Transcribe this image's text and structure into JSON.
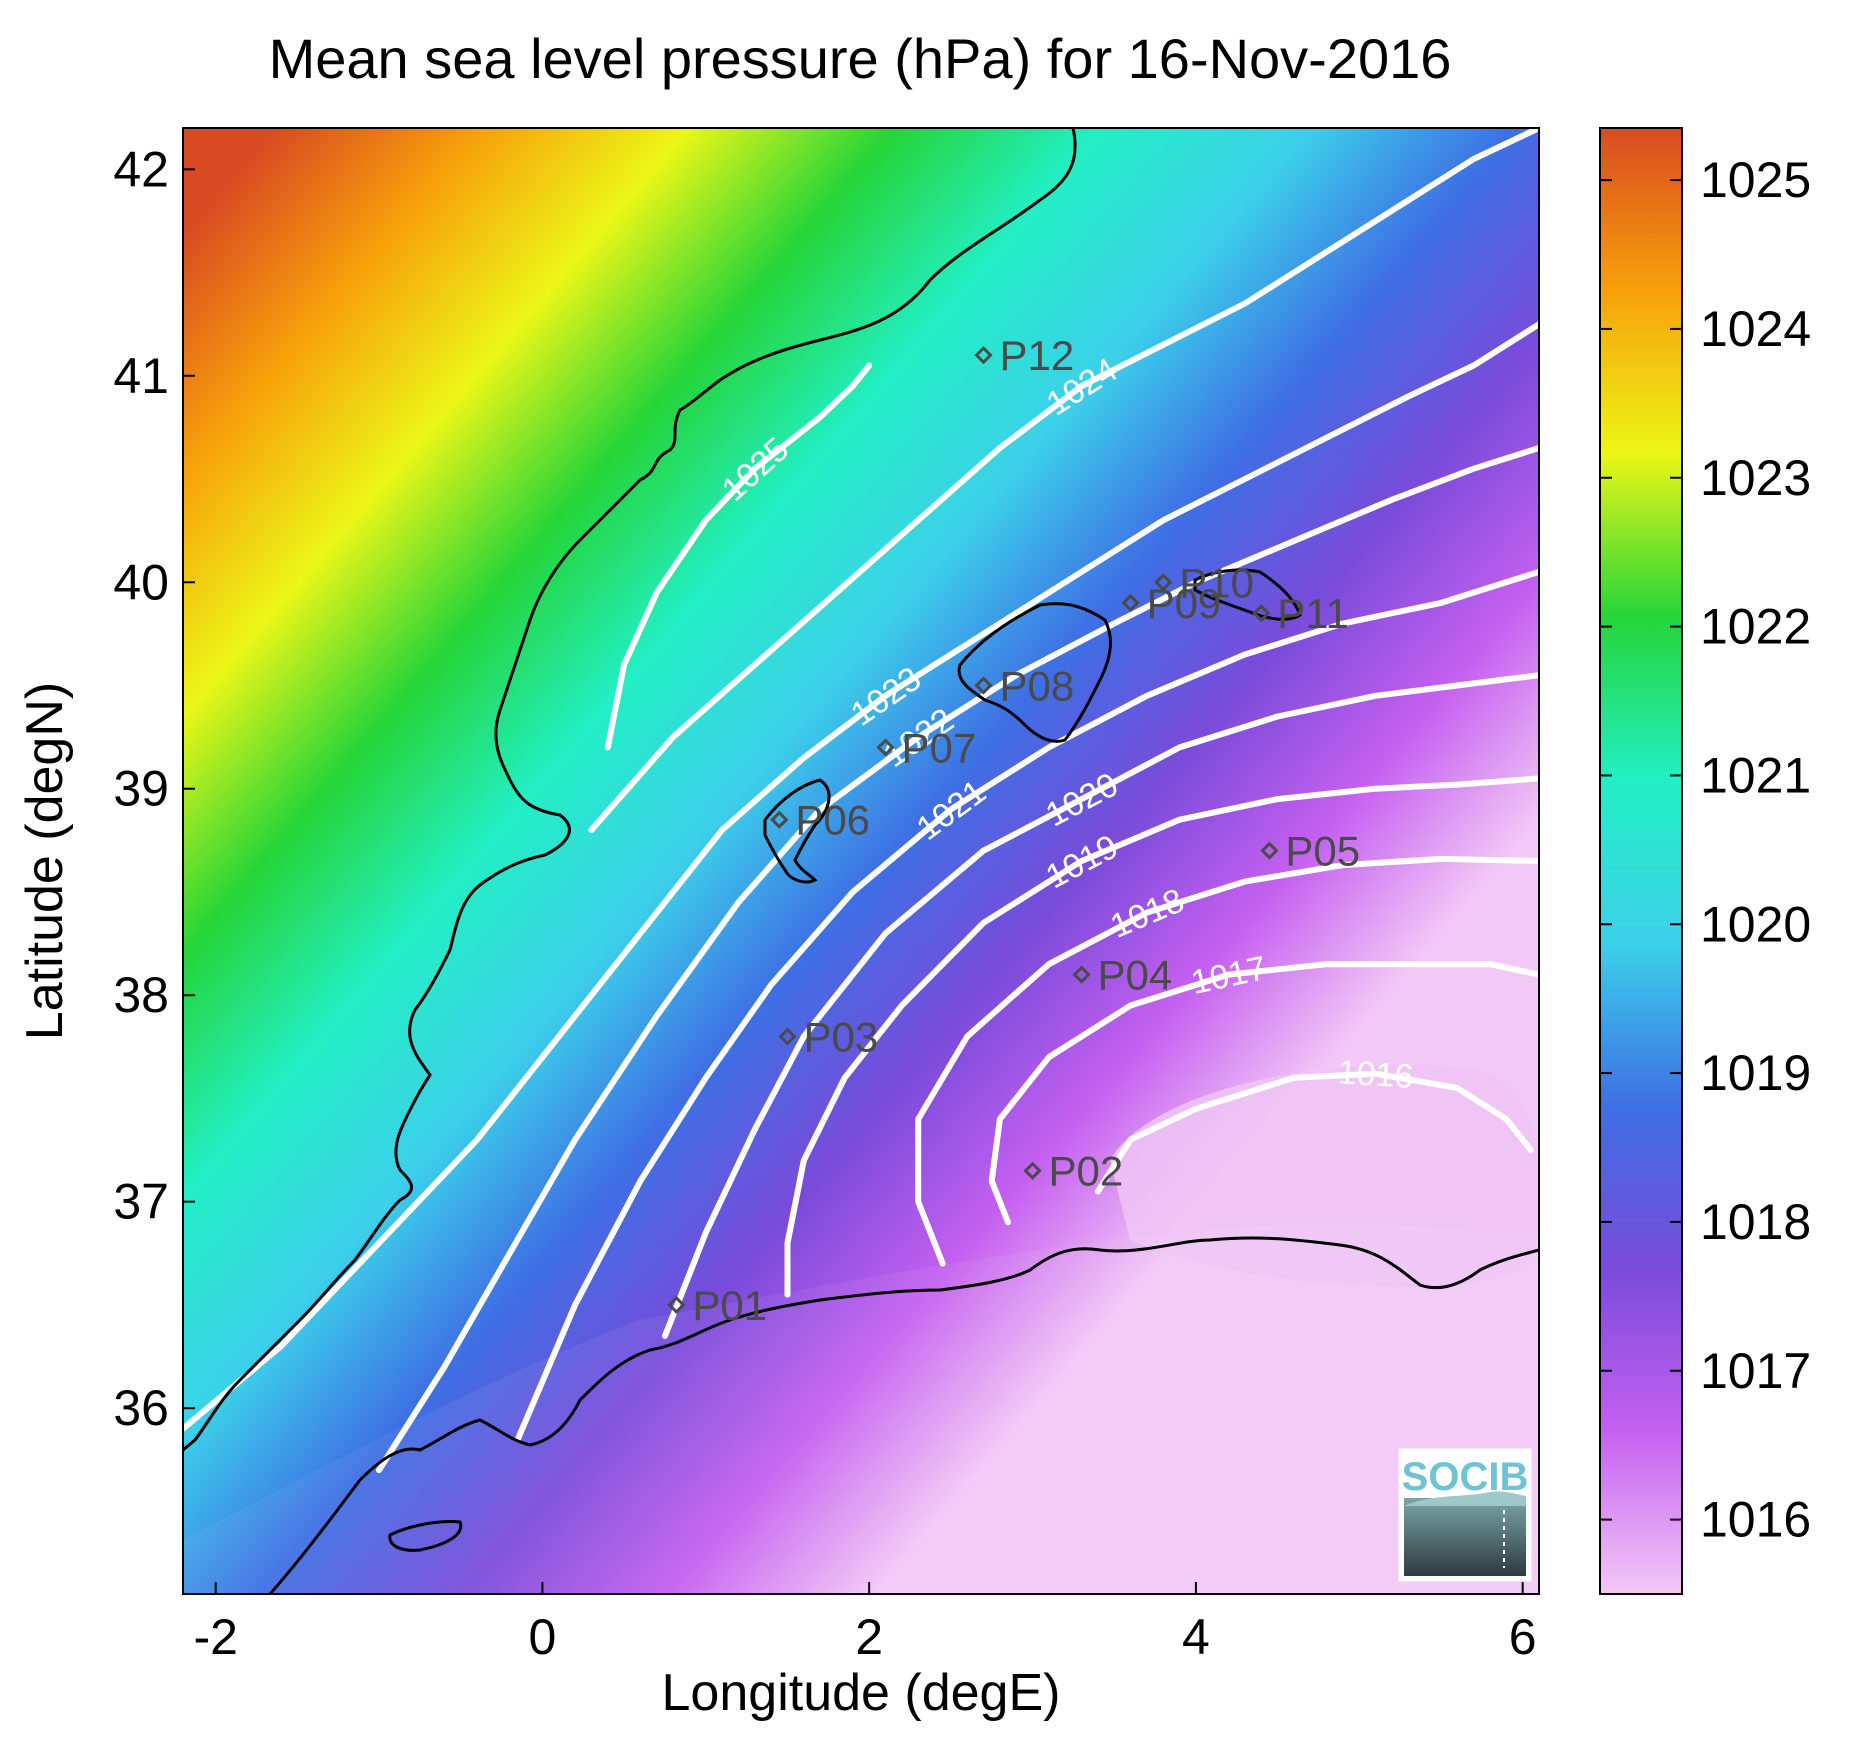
{
  "title": "Mean sea level pressure (hPa) for 16-Nov-2016",
  "x_axis": {
    "label": "Longitude (degE)",
    "ticks": [
      -2,
      0,
      2,
      4,
      6
    ],
    "range": [
      -2.2,
      6.1
    ]
  },
  "y_axis": {
    "label": "Latitude (degN)",
    "ticks": [
      36,
      37,
      38,
      39,
      40,
      41,
      42
    ],
    "range": [
      35.1,
      42.2
    ]
  },
  "colorbar": {
    "ticks": [
      1016,
      1017,
      1018,
      1019,
      1020,
      1021,
      1022,
      1023,
      1024,
      1025
    ],
    "range": [
      1015.5,
      1025.35
    ],
    "colors": [
      "#f2c8f6",
      "#c560f0",
      "#7a4bda",
      "#3e6fe4",
      "#3cd0ea",
      "#22efc4",
      "#25d538",
      "#ecf617",
      "#f7a10a",
      "#d94a22"
    ]
  },
  "contour_color": "#ffffff",
  "coastline_color": "#000000",
  "contours": [
    {
      "value": 1025,
      "label": "1025",
      "points": [
        [
          0.4,
          39.2
        ],
        [
          0.5,
          39.6
        ],
        [
          0.7,
          39.95
        ],
        [
          1.0,
          40.3
        ],
        [
          1.3,
          40.55
        ],
        [
          1.7,
          40.8
        ],
        [
          1.9,
          40.95
        ],
        [
          2.0,
          41.05
        ]
      ]
    },
    {
      "value": 1024,
      "label": "1024",
      "points": [
        [
          0.3,
          38.8
        ],
        [
          0.8,
          39.25
        ],
        [
          1.3,
          39.6
        ],
        [
          1.8,
          39.95
        ],
        [
          2.3,
          40.3
        ],
        [
          2.8,
          40.65
        ],
        [
          3.3,
          40.95
        ],
        [
          3.8,
          41.15
        ],
        [
          4.3,
          41.35
        ],
        [
          4.8,
          41.6
        ],
        [
          5.3,
          41.85
        ],
        [
          5.7,
          42.05
        ],
        [
          6.1,
          42.2
        ]
      ]
    },
    {
      "value": 1023,
      "label": "1023",
      "points": [
        [
          -2.2,
          35.9
        ],
        [
          -1.6,
          36.3
        ],
        [
          -1.0,
          36.8
        ],
        [
          -0.4,
          37.3
        ],
        [
          0.1,
          37.8
        ],
        [
          0.6,
          38.3
        ],
        [
          1.1,
          38.8
        ],
        [
          1.6,
          39.15
        ],
        [
          2.1,
          39.45
        ],
        [
          2.7,
          39.75
        ],
        [
          3.3,
          40.05
        ],
        [
          3.8,
          40.3
        ],
        [
          4.3,
          40.5
        ],
        [
          4.8,
          40.7
        ],
        [
          5.3,
          40.9
        ],
        [
          5.7,
          41.05
        ],
        [
          6.1,
          41.25
        ]
      ]
    },
    {
      "value": 1022,
      "label": "1022",
      "points": [
        [
          -1.0,
          35.7
        ],
        [
          -0.6,
          36.2
        ],
        [
          -0.2,
          36.75
        ],
        [
          0.2,
          37.3
        ],
        [
          0.7,
          37.9
        ],
        [
          1.2,
          38.45
        ],
        [
          1.7,
          38.9
        ],
        [
          2.3,
          39.25
        ],
        [
          2.9,
          39.55
        ],
        [
          3.5,
          39.8
        ],
        [
          4.0,
          40.0
        ],
        [
          4.6,
          40.2
        ],
        [
          5.2,
          40.4
        ],
        [
          5.7,
          40.55
        ],
        [
          6.1,
          40.65
        ]
      ]
    },
    {
      "value": 1021,
      "label": "1021",
      "points": [
        [
          -0.15,
          35.85
        ],
        [
          0.2,
          36.5
        ],
        [
          0.6,
          37.1
        ],
        [
          1.0,
          37.6
        ],
        [
          1.4,
          38.05
        ],
        [
          1.9,
          38.5
        ],
        [
          2.5,
          38.9
        ],
        [
          3.1,
          39.2
        ],
        [
          3.7,
          39.45
        ],
        [
          4.3,
          39.65
        ],
        [
          4.9,
          39.8
        ],
        [
          5.5,
          39.9
        ],
        [
          6.1,
          40.05
        ]
      ]
    },
    {
      "value": 1020,
      "label": "1020",
      "points": [
        [
          0.75,
          36.35
        ],
        [
          1.0,
          36.85
        ],
        [
          1.3,
          37.35
        ],
        [
          1.6,
          37.8
        ],
        [
          2.1,
          38.3
        ],
        [
          2.7,
          38.7
        ],
        [
          3.3,
          38.95
        ],
        [
          3.9,
          39.2
        ],
        [
          4.5,
          39.35
        ],
        [
          5.1,
          39.45
        ],
        [
          5.6,
          39.5
        ],
        [
          6.1,
          39.55
        ]
      ]
    },
    {
      "value": 1019,
      "label": "1019",
      "points": [
        [
          1.5,
          36.55
        ],
        [
          1.5,
          36.8
        ],
        [
          1.6,
          37.2
        ],
        [
          1.85,
          37.6
        ],
        [
          2.2,
          37.95
        ],
        [
          2.7,
          38.35
        ],
        [
          3.3,
          38.65
        ],
        [
          3.9,
          38.85
        ],
        [
          4.5,
          38.95
        ],
        [
          5.1,
          39.0
        ],
        [
          5.6,
          39.02
        ],
        [
          6.1,
          39.05
        ]
      ]
    },
    {
      "value": 1018,
      "label": "1018",
      "points": [
        [
          2.45,
          36.7
        ],
        [
          2.3,
          37.0
        ],
        [
          2.3,
          37.4
        ],
        [
          2.6,
          37.8
        ],
        [
          3.1,
          38.15
        ],
        [
          3.7,
          38.4
        ],
        [
          4.3,
          38.55
        ],
        [
          4.9,
          38.63
        ],
        [
          5.5,
          38.66
        ],
        [
          6.1,
          38.65
        ]
      ]
    },
    {
      "value": 1017,
      "label": "1017",
      "points": [
        [
          2.85,
          36.9
        ],
        [
          2.75,
          37.1
        ],
        [
          2.8,
          37.4
        ],
        [
          3.1,
          37.7
        ],
        [
          3.6,
          37.95
        ],
        [
          4.2,
          38.1
        ],
        [
          4.8,
          38.15
        ],
        [
          5.4,
          38.15
        ],
        [
          5.8,
          38.15
        ],
        [
          6.1,
          38.1
        ]
      ]
    },
    {
      "value": 1016,
      "label": "1016",
      "points": [
        [
          3.4,
          37.05
        ],
        [
          3.6,
          37.3
        ],
        [
          4.0,
          37.45
        ],
        [
          4.6,
          37.6
        ],
        [
          5.1,
          37.62
        ],
        [
          5.6,
          37.55
        ],
        [
          5.9,
          37.4
        ],
        [
          6.05,
          37.25
        ]
      ]
    }
  ],
  "stations": [
    {
      "name": "P01",
      "lon": 0.82,
      "lat": 36.5
    },
    {
      "name": "P02",
      "lon": 3.0,
      "lat": 37.15
    },
    {
      "name": "P03",
      "lon": 1.5,
      "lat": 37.8
    },
    {
      "name": "P04",
      "lon": 3.3,
      "lat": 38.1
    },
    {
      "name": "P05",
      "lon": 4.45,
      "lat": 38.7
    },
    {
      "name": "P06",
      "lon": 1.45,
      "lat": 38.85
    },
    {
      "name": "P07",
      "lon": 2.1,
      "lat": 39.2
    },
    {
      "name": "P08",
      "lon": 2.7,
      "lat": 39.5
    },
    {
      "name": "P09",
      "lon": 3.6,
      "lat": 39.9
    },
    {
      "name": "P10",
      "lon": 3.8,
      "lat": 40.0
    },
    {
      "name": "P11",
      "lon": 4.4,
      "lat": 39.85
    },
    {
      "name": "P12",
      "lon": 2.7,
      "lat": 41.1
    }
  ],
  "logo": {
    "text": "SOCIB"
  }
}
